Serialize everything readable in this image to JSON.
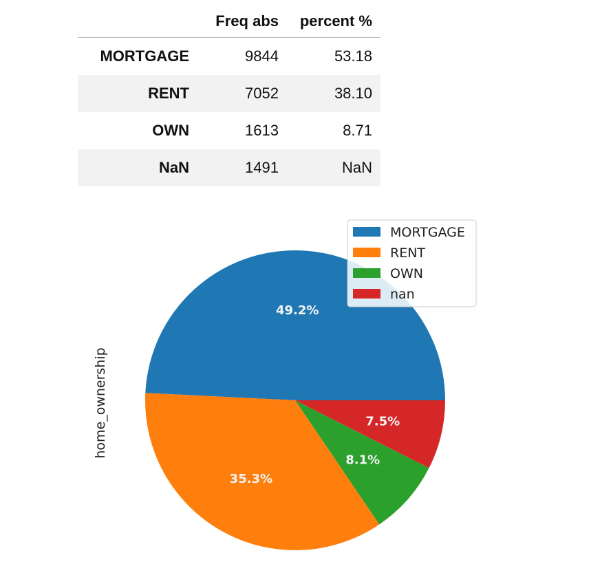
{
  "table": {
    "columns": [
      "Freq abs",
      "percent %"
    ],
    "rows": [
      {
        "label": "MORTGAGE",
        "freq": "9844",
        "pct": "53.18"
      },
      {
        "label": "RENT",
        "freq": "7052",
        "pct": "38.10"
      },
      {
        "label": "OWN",
        "freq": "1613",
        "pct": "8.71"
      },
      {
        "label": "NaN",
        "freq": "1491",
        "pct": "NaN"
      }
    ]
  },
  "chart_data": {
    "type": "pie",
    "title": "",
    "ylabel": "home_ownership",
    "legend_position": "top-right",
    "categories": [
      "MORTGAGE",
      "RENT",
      "OWN",
      "nan"
    ],
    "values": [
      9844,
      7052,
      1613,
      1491
    ],
    "labels": [
      "49.2%",
      "35.3%",
      "8.1%",
      "7.5%"
    ],
    "colors": [
      "#1f77b4",
      "#ff7f0e",
      "#2ca02c",
      "#d62728"
    ]
  }
}
